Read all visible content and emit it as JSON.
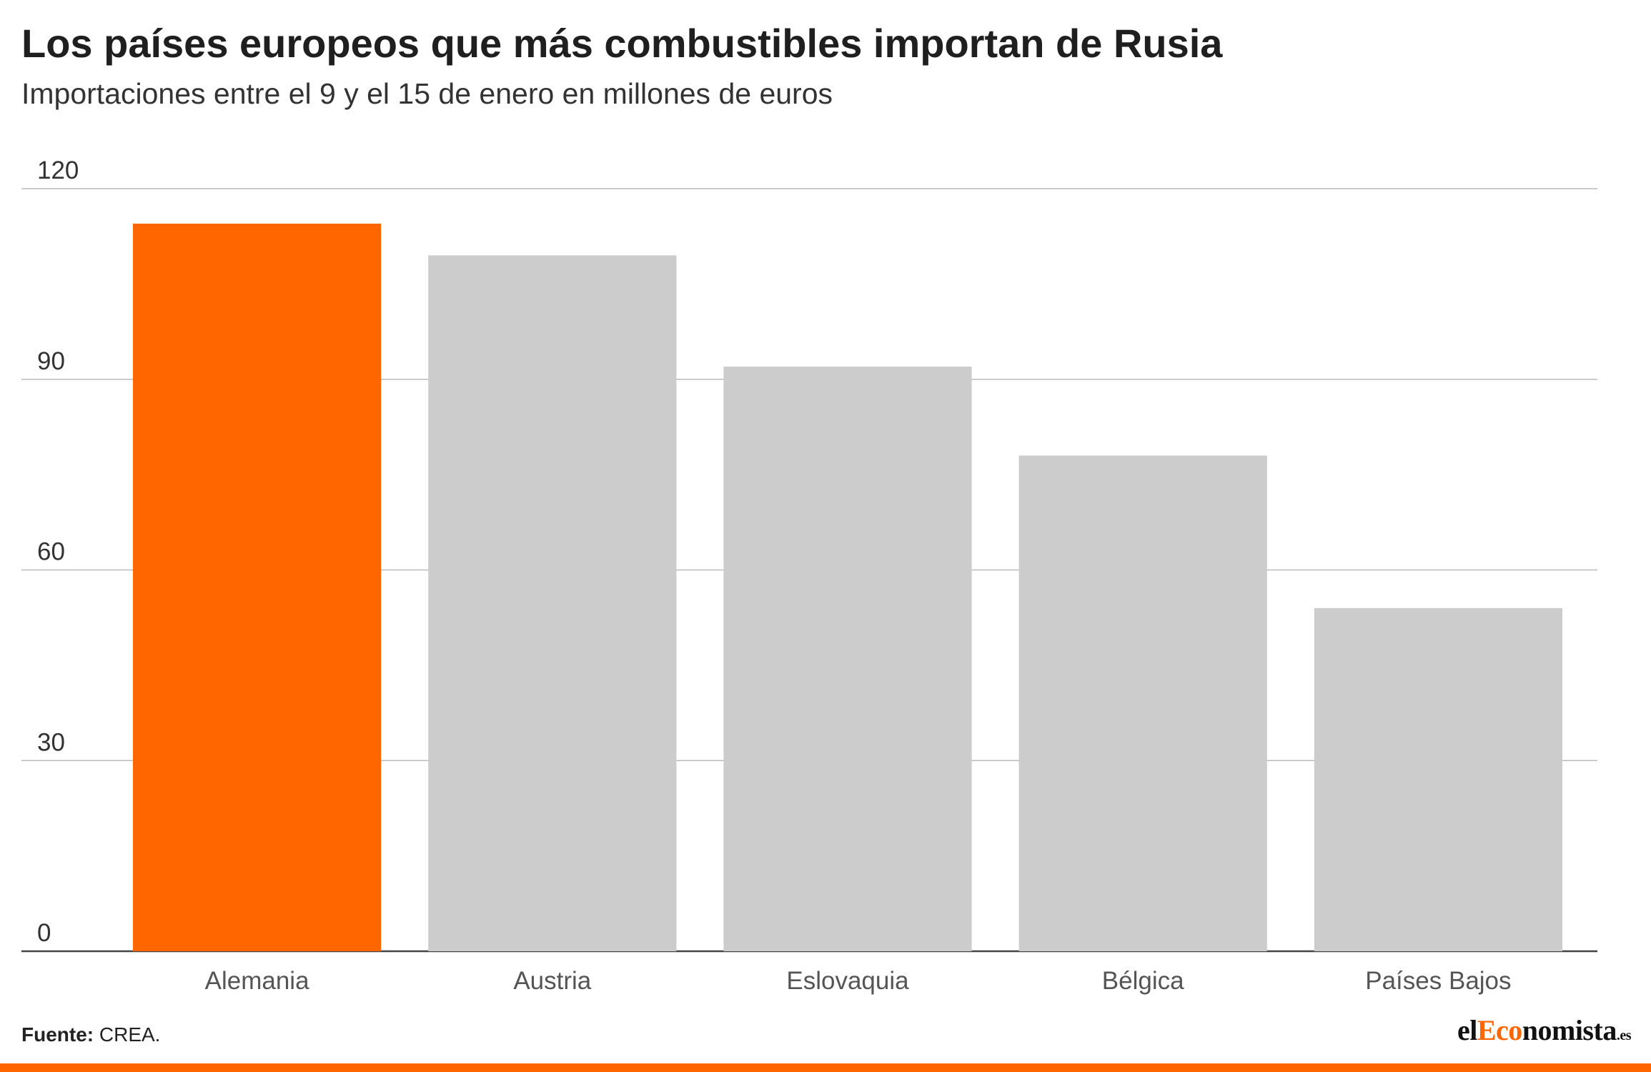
{
  "header": {
    "title": "Los países europeos que más combustibles importan de Rusia",
    "subtitle": "Importaciones entre el 9 y el 15 de enero en millones de euros"
  },
  "chart_data": {
    "type": "bar",
    "categories": [
      "Alemania",
      "Austria",
      "Eslovaquia",
      "Bélgica",
      "Países Bajos"
    ],
    "values": [
      114.5,
      109.5,
      92,
      78,
      54
    ],
    "ylim": [
      0,
      120
    ],
    "yticks": [
      0,
      30,
      60,
      90,
      120
    ],
    "ytick_labels": [
      "0",
      "30",
      "60",
      "90",
      "120"
    ],
    "grid": true,
    "colors": {
      "highlight": "#ff6600",
      "default": "#cccccc",
      "gridline": "#bbbbbb",
      "baseline": "#444444"
    },
    "highlight_index": 0
  },
  "footer": {
    "source_label": "Fuente:",
    "source_text": "CREA.",
    "logo_part1": "el",
    "logo_part2": "Eco",
    "logo_part3": "nomista",
    "logo_suffix": ".es"
  }
}
